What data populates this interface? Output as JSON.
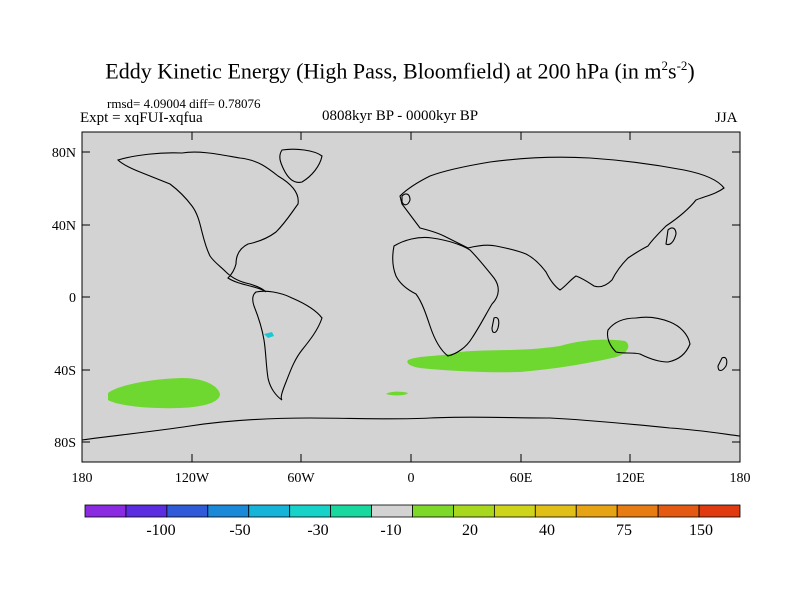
{
  "title": {
    "main": "Eddy Kinetic Energy (High Pass, Bloomfield) at 200 hPa (in m",
    "sup1": "2",
    "mid": "s",
    "sup2": "-2",
    "end": ")"
  },
  "stats": {
    "rmsd_diff": "rmsd= 4.09004 diff= 0.78076",
    "experiment": "Expt = xqFUI-xqfua",
    "period": "0808kyr BP - 0000kyr BP",
    "season": "JJA"
  },
  "axes": {
    "y_ticks": [
      "80N",
      "40N",
      "0",
      "40S",
      "80S"
    ],
    "x_ticks": [
      "180",
      "120W",
      "60W",
      "0",
      "60E",
      "120E",
      "180"
    ]
  },
  "colorbar": {
    "labels": [
      "-100",
      "-50",
      "-30",
      "-10",
      "20",
      "40",
      "75",
      "150"
    ],
    "colors": [
      "#8a2be2",
      "#5a2ee0",
      "#2f5ad8",
      "#1a8ad8",
      "#16b4d8",
      "#16d2c8",
      "#18d8a0",
      "#d3d3d3",
      "#7ed82a",
      "#a8d81e",
      "#cdd41a",
      "#e0c016",
      "#e6a414",
      "#e67c12",
      "#e45a12",
      "#e03a10"
    ]
  },
  "colors": {
    "ocean": "#d3d3d3",
    "positive_anomaly": "#6ed830",
    "negative_anomaly": "#19c8d2"
  }
}
